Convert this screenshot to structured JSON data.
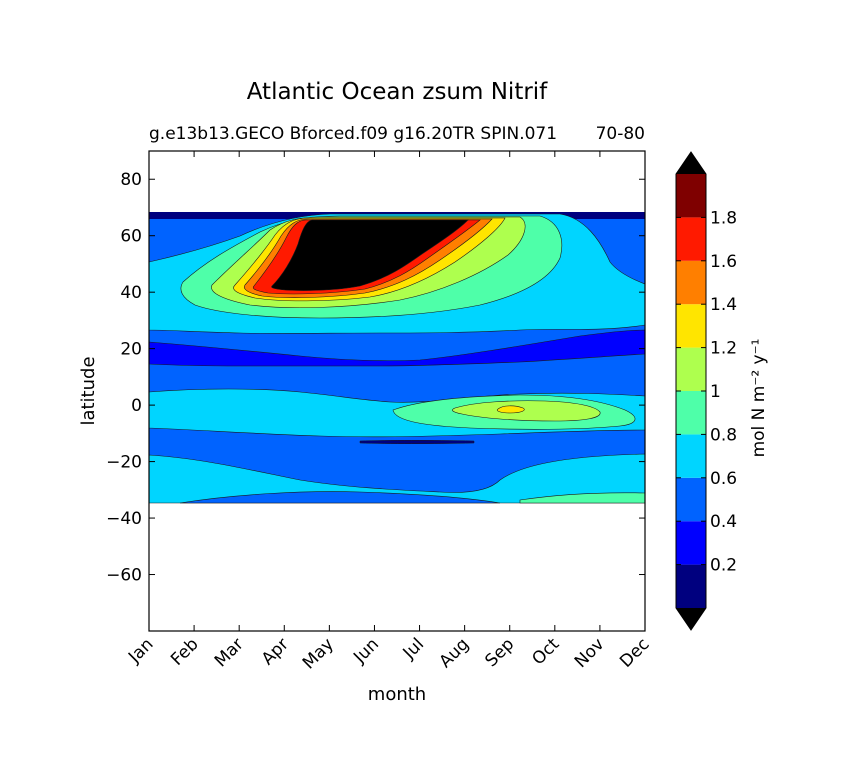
{
  "chart_data": {
    "type": "heatmap",
    "title": "Atlantic Ocean zsum Nitrif",
    "subtitle_left": "g.e13b13.GECO Bforced.f09 g16.20TR SPIN.071",
    "subtitle_right": "70-80",
    "xlabel": "month",
    "ylabel": "latitude",
    "x_categories": [
      "Jan",
      "Feb",
      "Mar",
      "Apr",
      "May",
      "Jun",
      "Jul",
      "Aug",
      "Sep",
      "Oct",
      "Nov",
      "Dec"
    ],
    "y_ticks": [
      80,
      60,
      40,
      20,
      0,
      -20,
      -40,
      -60
    ],
    "ylim": [
      -80,
      90
    ],
    "data_lat_range": [
      -34,
      69
    ],
    "colorbar": {
      "label": "mol N m⁻² y⁻¹",
      "tick_labels": [
        "0.2",
        "0.4",
        "0.6",
        "0.8",
        "1",
        "1.2",
        "1.4",
        "1.6",
        "1.8"
      ],
      "levels": [
        0,
        0.2,
        0.4,
        0.6,
        0.8,
        1.0,
        1.2,
        1.4,
        1.6,
        1.8,
        2.0
      ],
      "colors": [
        "#00007f",
        "#0000ff",
        "#0063ff",
        "#00d5ff",
        "#4effa9",
        "#aeff4e",
        "#ffe500",
        "#ff7f00",
        "#ff1a00",
        "#7f0000"
      ],
      "extend_low_color": "#000000",
      "extend_high_color": "#000000"
    },
    "regions": [
      {
        "label": "high-latitude peak (>1.8, black) centered May–Jul, 40–66N",
        "value": 2.0
      },
      {
        "label": "equatorial maximum Sep–Oct near 0N",
        "value": 1.3
      },
      {
        "label": "low band near 20N",
        "value": 0.3
      }
    ]
  }
}
